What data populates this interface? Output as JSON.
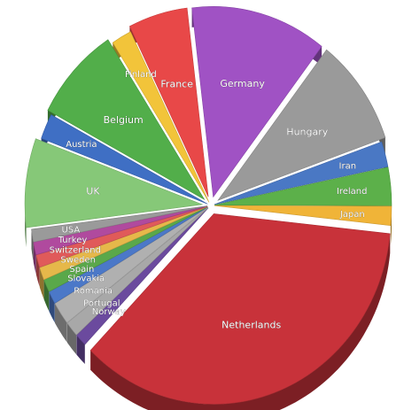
{
  "chart_data": {
    "type": "pie",
    "style": "3d-exploded",
    "legend": "none",
    "title": "",
    "slices": [
      {
        "label": "Netherlands",
        "value": 33.0,
        "color": "#c8323a"
      },
      {
        "label": "Norway",
        "value": 1.0,
        "color": "#6b4a9e"
      },
      {
        "label": "Portugal",
        "value": 1.2,
        "color": "#a8a8a8"
      },
      {
        "label": "Romania",
        "value": 1.8,
        "color": "#b0b0b0"
      },
      {
        "label": "Slovakia",
        "value": 1.0,
        "color": "#4b78c8"
      },
      {
        "label": "Spain",
        "value": 1.0,
        "color": "#5aa84a"
      },
      {
        "label": "Sweden",
        "value": 1.0,
        "color": "#e6b84a"
      },
      {
        "label": "Switzerland",
        "value": 1.0,
        "color": "#e05a5a"
      },
      {
        "label": "Turkey",
        "value": 1.0,
        "color": "#b04a9e"
      },
      {
        "label": "USA",
        "value": 1.0,
        "color": "#9a9a9a"
      },
      {
        "label": "UK",
        "value": 7.0,
        "color": "#86c878"
      },
      {
        "label": "Austria",
        "value": 2.0,
        "color": "#3f6fc4"
      },
      {
        "label": "Belgium",
        "value": 7.5,
        "color": "#52ae4a"
      },
      {
        "label": "Finland",
        "value": 1.7,
        "color": "#f2c43a"
      },
      {
        "label": "France",
        "value": 5.0,
        "color": "#e84848"
      },
      {
        "label": "Germany",
        "value": 11.5,
        "color": "#a052c4"
      },
      {
        "label": "Hungary",
        "value": 8.5,
        "color": "#9a9a9a"
      },
      {
        "label": "Iran",
        "value": 2.0,
        "color": "#4a78c4"
      },
      {
        "label": "Ireland",
        "value": 3.0,
        "color": "#5cb04a"
      },
      {
        "label": "Japan",
        "value": 1.5,
        "color": "#f0b438"
      }
    ]
  }
}
